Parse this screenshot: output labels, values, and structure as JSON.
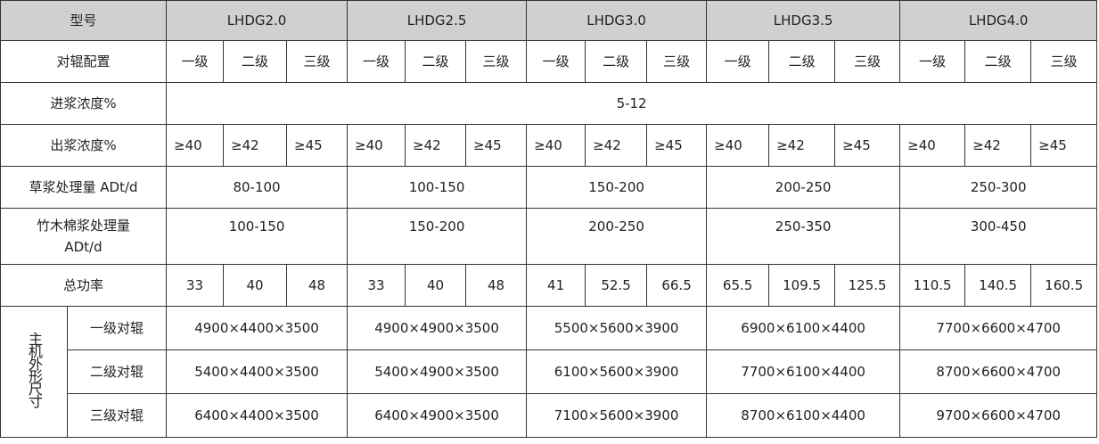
{
  "header": {
    "label": "型号",
    "models": [
      "LHDG2.0",
      "LHDG2.5",
      "LHDG3.0",
      "LHDG3.5",
      "LHDG4.0"
    ]
  },
  "rows": {
    "config": {
      "label": "对辊配置",
      "levels": [
        "一级",
        "二级",
        "三级"
      ]
    },
    "inlet": {
      "label": "进浆浓度%",
      "value": "5-12"
    },
    "outlet": {
      "label": "出浆浓度%",
      "values": [
        "≥40",
        "≥42",
        "≥45"
      ]
    },
    "straw": {
      "label": "草浆处理量 ADt/d",
      "values": [
        "80-100",
        "100-150",
        "150-200",
        "200-250",
        "250-300"
      ]
    },
    "wood": {
      "label": "竹木棉浆处理量ADt/d",
      "values": [
        "100-150",
        "150-200",
        "200-250",
        "250-350",
        "300-450"
      ]
    },
    "power": {
      "label": "总功率",
      "values": [
        "33",
        "40",
        "48",
        "33",
        "40",
        "48",
        "41",
        "52.5",
        "66.5",
        "65.5",
        "109.5",
        "125.5",
        "110.5",
        "140.5",
        "160.5"
      ]
    },
    "dimensions": {
      "label": "主机外形尺寸",
      "items": [
        {
          "label": "一级对辊",
          "values": [
            "4900×4400×3500",
            "4900×4900×3500",
            "5500×5600×3900",
            "6900×6100×4400",
            "7700×6600×4700"
          ]
        },
        {
          "label": "二级对辊",
          "values": [
            "5400×4400×3500",
            "5400×4900×3500",
            "6100×5600×3900",
            "7700×6100×4400",
            "8700×6600×4700"
          ]
        },
        {
          "label": "三级对辊",
          "values": [
            "6400×4400×3500",
            "6400×4900×3500",
            "7100×5600×3900",
            "8700×6100×4400",
            "9700×6600×4700"
          ]
        }
      ]
    }
  },
  "colors": {
    "header_bg": "#d0d0d0",
    "border": "#333333"
  }
}
